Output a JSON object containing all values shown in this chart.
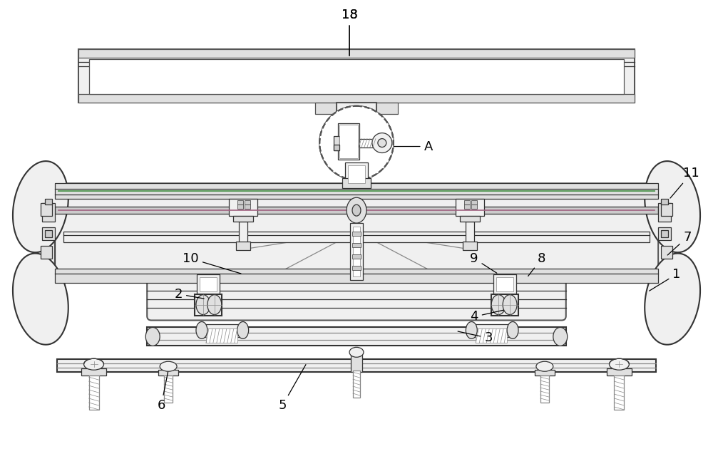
{
  "bg_color": "#ffffff",
  "lc": "#555555",
  "lc_dark": "#333333",
  "lc_thin": "#888888",
  "green_line": "#5a9a5a",
  "purple_line": "#a06080",
  "fill_white": "#ffffff",
  "fill_light": "#f0f0f0",
  "fill_med": "#e0e0e0",
  "fill_dark": "#cccccc",
  "fill_darkest": "#b0b0b0"
}
